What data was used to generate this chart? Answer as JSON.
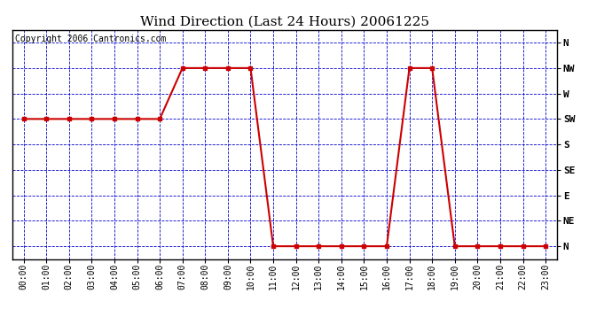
{
  "title": "Wind Direction (Last 24 Hours) 20061225",
  "copyright_text": "Copyright 2006 Cantronics.com",
  "x_labels": [
    "00:00",
    "01:00",
    "02:00",
    "03:00",
    "04:00",
    "05:00",
    "06:00",
    "07:00",
    "08:00",
    "09:00",
    "10:00",
    "11:00",
    "12:00",
    "13:00",
    "14:00",
    "15:00",
    "16:00",
    "17:00",
    "18:00",
    "19:00",
    "20:00",
    "21:00",
    "22:00",
    "23:00"
  ],
  "y_labels": [
    "N",
    "NE",
    "E",
    "SE",
    "S",
    "SW",
    "W",
    "NW",
    "N"
  ],
  "y_values": [
    0,
    1,
    2,
    3,
    4,
    5,
    6,
    7,
    8
  ],
  "data_x": [
    0,
    1,
    2,
    3,
    4,
    5,
    6,
    7,
    8,
    9,
    10,
    11,
    12,
    13,
    14,
    15,
    16,
    17,
    18,
    19,
    20,
    21,
    22,
    23
  ],
  "data_y": [
    5,
    5,
    5,
    5,
    5,
    5,
    5,
    7,
    7,
    7,
    7,
    0,
    0,
    0,
    0,
    0,
    0,
    7,
    7,
    0,
    0,
    0,
    0,
    0
  ],
  "line_color": "#cc0000",
  "marker_color": "#cc0000",
  "bg_color": "#ffffff",
  "plot_bg_color": "#ffffff",
  "grid_color": "#0000cc",
  "axis_label_color": "#000000",
  "title_fontsize": 11,
  "copyright_fontsize": 7,
  "tick_fontsize": 7,
  "ylabel_fontsize": 8
}
